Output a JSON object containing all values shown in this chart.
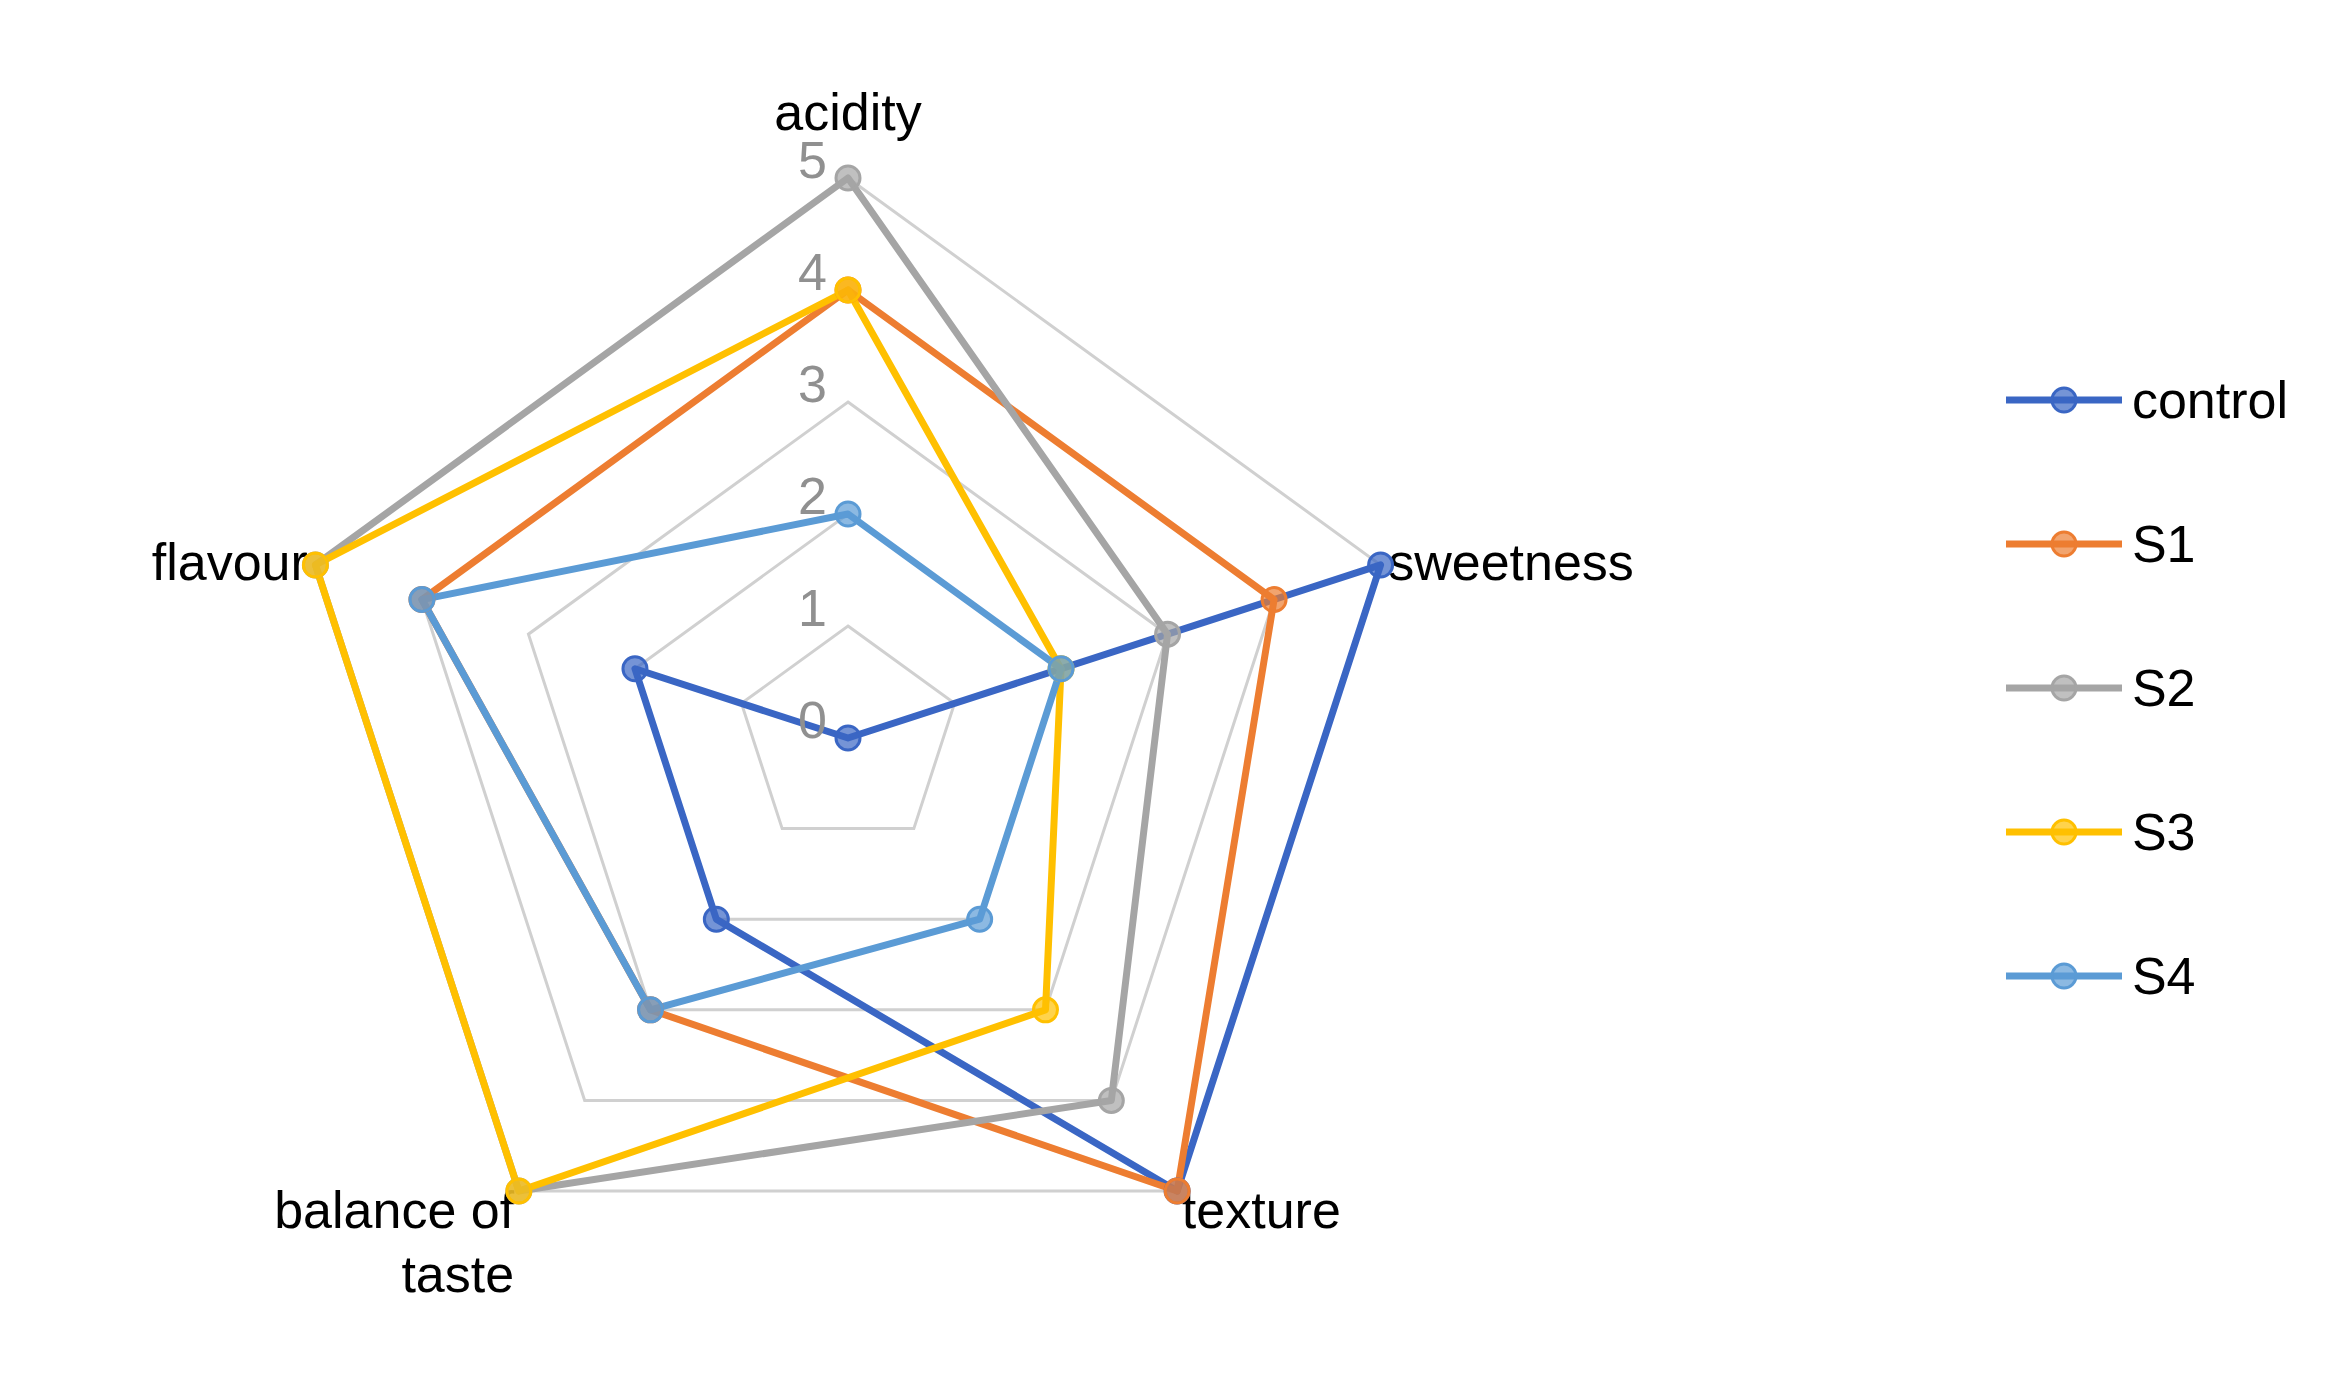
{
  "chart_data": {
    "type": "radar",
    "categories": [
      "acidity",
      "sweetness",
      "texture",
      "balance of taste",
      "flavour"
    ],
    "series": [
      {
        "name": "control",
        "color": "#3a66c4",
        "values": [
          0,
          5,
          5,
          2,
          2
        ]
      },
      {
        "name": "S1",
        "color": "#ed7d31",
        "values": [
          4,
          4,
          5,
          3,
          4
        ]
      },
      {
        "name": "S2",
        "color": "#a5a5a5",
        "values": [
          5,
          3,
          4,
          5,
          5
        ]
      },
      {
        "name": "S3",
        "color": "#ffc000",
        "values": [
          4,
          2,
          3,
          5,
          5
        ]
      },
      {
        "name": "S4",
        "color": "#5b9bd5",
        "values": [
          2,
          2,
          2,
          3,
          4
        ]
      }
    ],
    "ylim": [
      0,
      5
    ],
    "yticks": [
      0,
      1,
      2,
      3,
      4,
      5
    ],
    "grid": true,
    "legend": "right",
    "marker": "circle",
    "line_style": "solid"
  }
}
